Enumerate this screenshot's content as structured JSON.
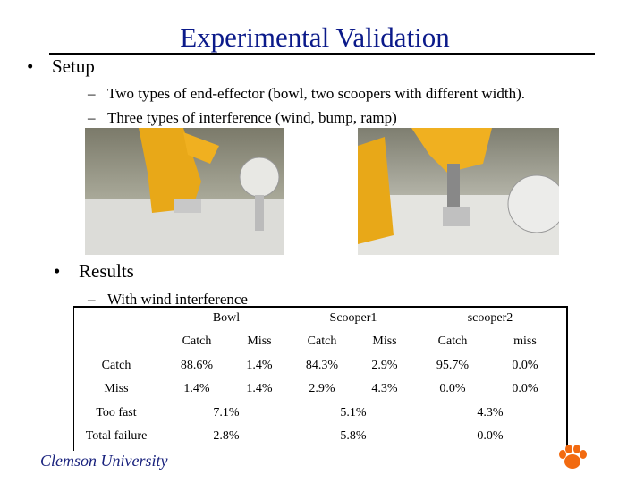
{
  "title": "Experimental Validation",
  "bullets": [
    {
      "text": "Setup",
      "subs": [
        "Two types of end-effector (bowl, two scoopers with different width).",
        "Three types of interference (wind, bump, ramp)"
      ]
    },
    {
      "text": "Results",
      "subs": [
        "With wind interference"
      ]
    }
  ],
  "table": {
    "groups": [
      "Bowl",
      "Scooper1",
      "scooper2"
    ],
    "subheaders": [
      "Catch",
      "Miss",
      "Catch",
      "Miss",
      "Catch",
      "miss"
    ],
    "rows": [
      [
        "Catch",
        "88.6%",
        "1.4%",
        "84.3%",
        "2.9%",
        "95.7%",
        "0.0%"
      ],
      [
        "Miss",
        "1.4%",
        "1.4%",
        "2.9%",
        "4.3%",
        "0.0%",
        "0.0%"
      ]
    ],
    "summary_rows": [
      [
        "Too fast",
        "7.1%",
        "5.1%",
        "4.3%"
      ],
      [
        "Total failure",
        "2.8%",
        "5.8%",
        "0.0%"
      ]
    ]
  },
  "footer": "Clemson University"
}
